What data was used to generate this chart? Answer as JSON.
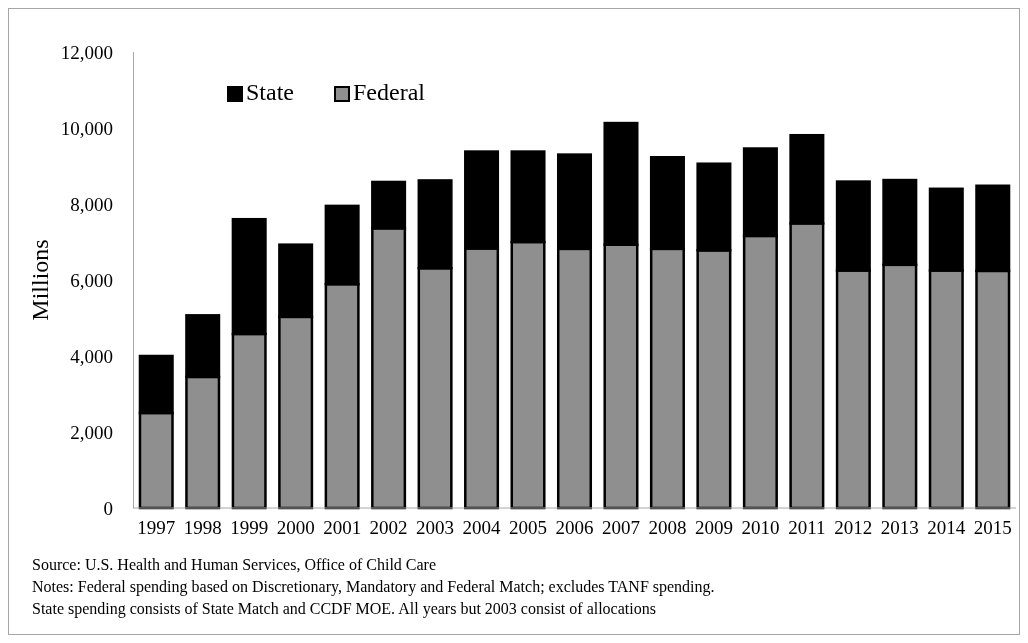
{
  "chart_data": {
    "type": "bar",
    "stacked": true,
    "ylabel": "Millions",
    "categories": [
      "1997",
      "1998",
      "1999",
      "2000",
      "2001",
      "2002",
      "2003",
      "2004",
      "2005",
      "2006",
      "2007",
      "2008",
      "2009",
      "2010",
      "2011",
      "2012",
      "2013",
      "2014",
      "2015"
    ],
    "series": [
      {
        "name": "Federal",
        "color": "#8f8f8f",
        "values": [
          2500,
          3450,
          4580,
          5030,
          5890,
          7360,
          6310,
          6830,
          7000,
          6820,
          6930,
          6820,
          6780,
          7160,
          7490,
          6250,
          6400,
          6250,
          6240
        ]
      },
      {
        "name": "State",
        "color": "#000000",
        "values": [
          1500,
          1620,
          3020,
          1900,
          2060,
          1220,
          2310,
          2550,
          2380,
          2480,
          3200,
          2410,
          2280,
          2300,
          2320,
          2340,
          2230,
          2150,
          2240
        ]
      }
    ],
    "ylim": [
      0,
      12000
    ],
    "yticks": [
      {
        "value": 0,
        "label": "0"
      },
      {
        "value": 2000,
        "label": "2,000"
      },
      {
        "value": 4000,
        "label": "4,000"
      },
      {
        "value": 6000,
        "label": "6,000"
      },
      {
        "value": 8000,
        "label": "8,000"
      },
      {
        "value": 10000,
        "label": "10,000"
      },
      {
        "value": 12000,
        "label": "12,000"
      }
    ],
    "grid": false,
    "legend": "top left",
    "annotations": [
      "Source: U.S. Health and Human Services, Office of Child Care",
      "Notes: Federal spending based on Discretionary, Mandatory and Federal Match; excludes TANF spending.",
      "State spending consists of State Match and CCDF MOE. All years but 2003 consist of allocations"
    ]
  }
}
